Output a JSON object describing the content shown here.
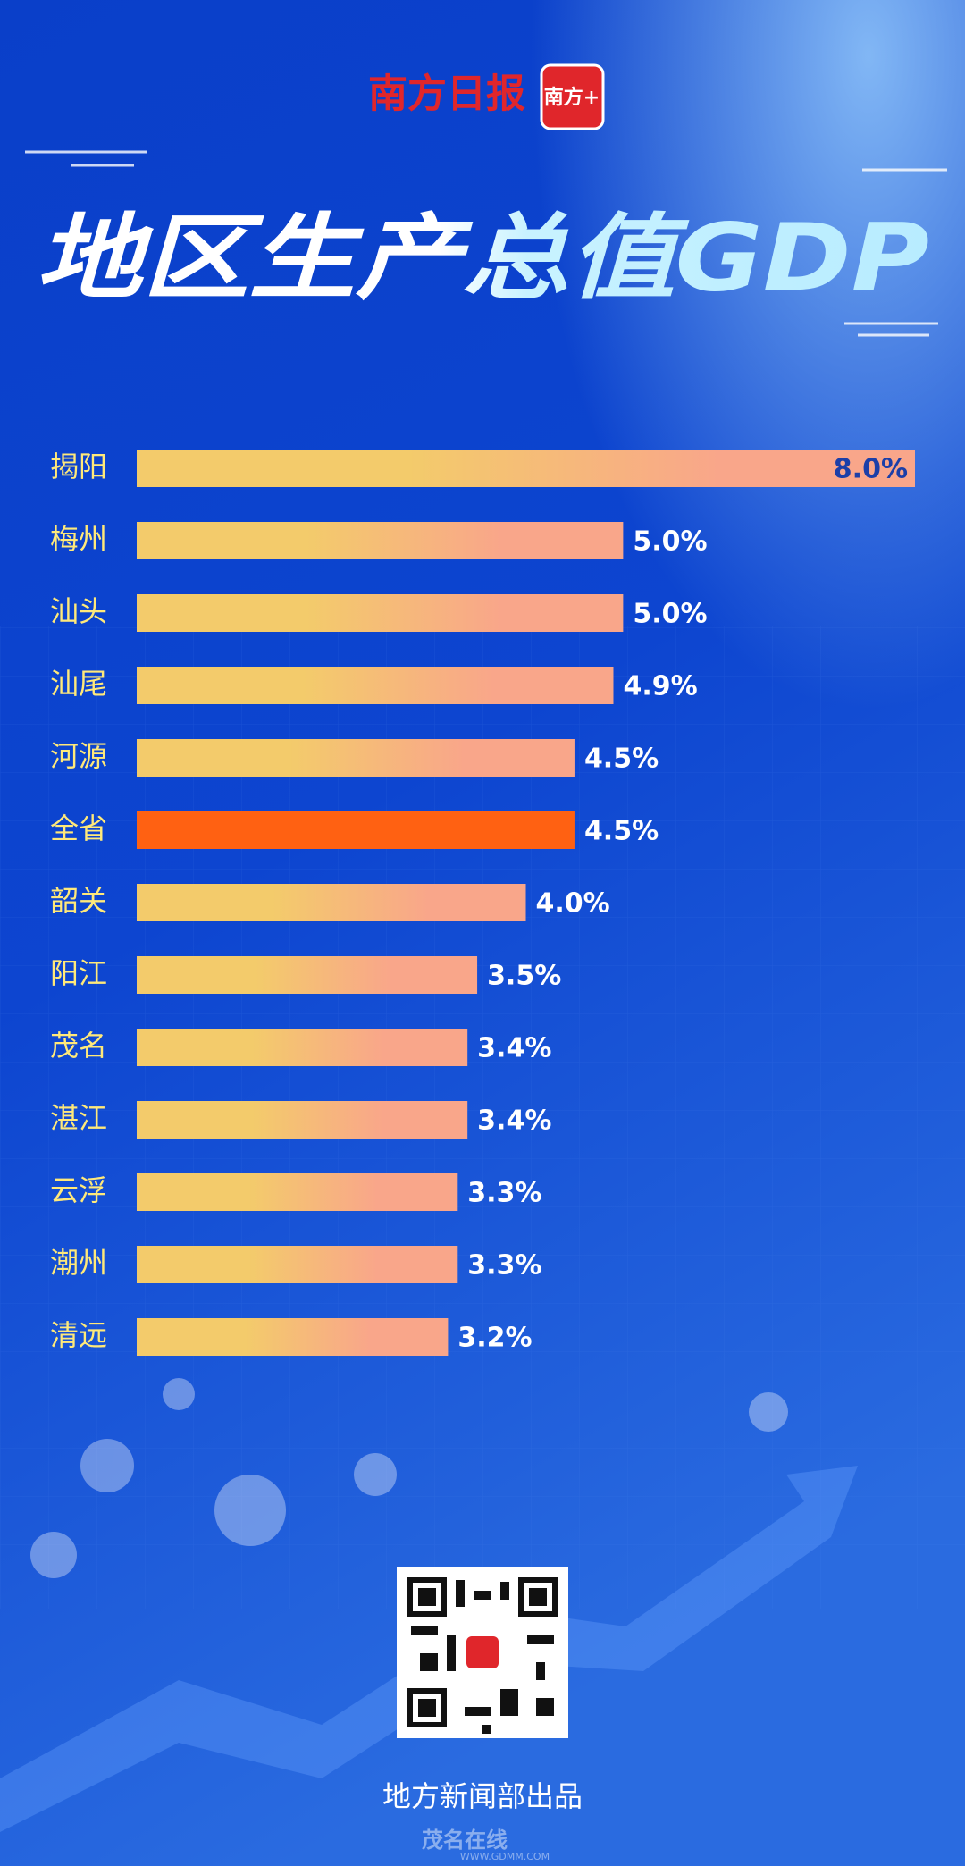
{
  "header": {
    "brand": "南方日报",
    "app_badge": "南方+"
  },
  "chart_data": {
    "type": "hbar",
    "title": "地区生产总值GDP",
    "categories": [
      "揭阳",
      "梅州",
      "汕头",
      "汕尾",
      "河源",
      "全省",
      "韶关",
      "阳江",
      "茂名",
      "湛江",
      "云浮",
      "潮州",
      "清远"
    ],
    "values": [
      8.0,
      5.0,
      5.0,
      4.9,
      4.5,
      4.5,
      4.0,
      3.5,
      3.4,
      3.4,
      3.3,
      3.3,
      3.2
    ],
    "value_labels": [
      "8.0%",
      "5.0%",
      "5.0%",
      "4.9%",
      "4.5%",
      "4.5%",
      "4.0%",
      "3.5%",
      "3.4%",
      "3.4%",
      "3.3%",
      "3.3%",
      "3.2%"
    ],
    "colors": [
      [
        "#f3cb6b",
        "#f9a68a"
      ],
      [
        "#f3cb6b",
        "#f9a68a"
      ],
      [
        "#f3cb6b",
        "#f9a68a"
      ],
      [
        "#f3cb6b",
        "#f9a68a"
      ],
      [
        "#f3cb6b",
        "#f9a68a"
      ],
      [
        "#ff6112",
        "#ff6112"
      ],
      [
        "#f3cb6b",
        "#f9a68a"
      ],
      [
        "#f3cb6b",
        "#f9a68a"
      ],
      [
        "#f3cb6b",
        "#f9a68a"
      ],
      [
        "#f3cb6b",
        "#f9a68a"
      ],
      [
        "#f3cb6b",
        "#f9a68a"
      ],
      [
        "#f3cb6b",
        "#f9a68a"
      ],
      [
        "#f3cb6b",
        "#f9a68a"
      ]
    ]
  },
  "footer": {
    "credit": "地方新闻部出品",
    "watermark": "茂名在线",
    "watermark_url": "WWW.GDMM.COM"
  }
}
